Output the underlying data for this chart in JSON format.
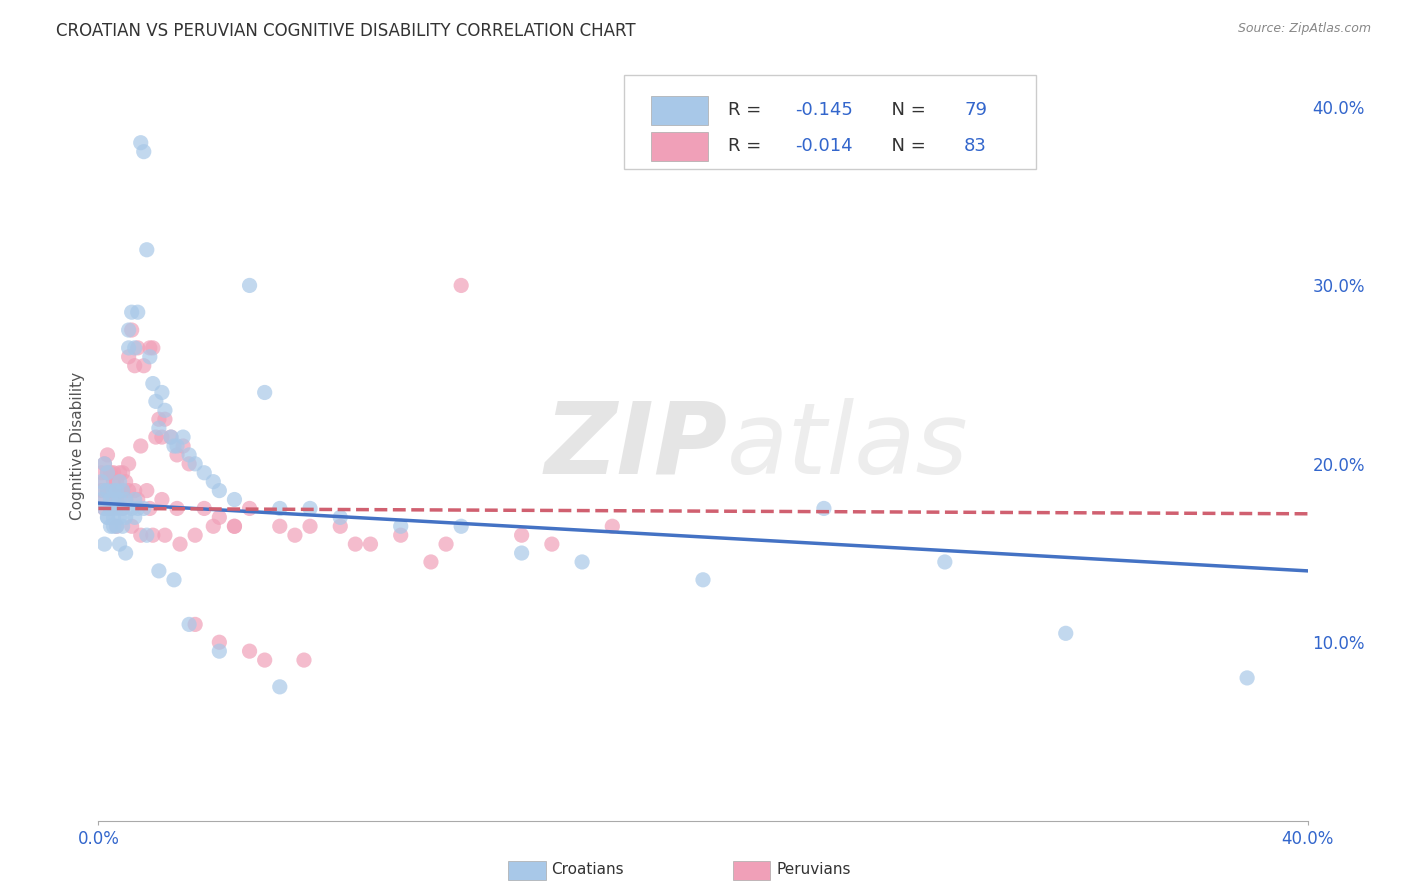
{
  "title": "CROATIAN VS PERUVIAN COGNITIVE DISABILITY CORRELATION CHART",
  "source": "Source: ZipAtlas.com",
  "ylabel": "Cognitive Disability",
  "watermark": "ZIPatlas",
  "croatian_color": "#a8c8e8",
  "peruvian_color": "#f0a0b8",
  "croatian_line_color": "#4472c4",
  "peruvian_line_color": "#d06070",
  "legend_color": "#3366cc",
  "croatian_R": -0.145,
  "croatian_N": 79,
  "peruvian_R": -0.014,
  "peruvian_N": 83,
  "xlim": [
    0.0,
    0.4
  ],
  "ylim": [
    0.0,
    0.42
  ],
  "yticks": [
    0.1,
    0.2,
    0.3,
    0.4
  ],
  "background_color": "#ffffff",
  "grid_color": "#dddddd",
  "croatian_x": [
    0.001,
    0.001,
    0.002,
    0.002,
    0.002,
    0.003,
    0.003,
    0.003,
    0.004,
    0.004,
    0.004,
    0.005,
    0.005,
    0.005,
    0.006,
    0.006,
    0.006,
    0.007,
    0.007,
    0.007,
    0.008,
    0.008,
    0.008,
    0.009,
    0.009,
    0.01,
    0.01,
    0.011,
    0.011,
    0.012,
    0.012,
    0.013,
    0.013,
    0.014,
    0.015,
    0.015,
    0.016,
    0.017,
    0.018,
    0.019,
    0.02,
    0.021,
    0.022,
    0.024,
    0.025,
    0.026,
    0.028,
    0.03,
    0.032,
    0.035,
    0.038,
    0.04,
    0.045,
    0.05,
    0.055,
    0.06,
    0.07,
    0.08,
    0.1,
    0.12,
    0.14,
    0.16,
    0.2,
    0.24,
    0.28,
    0.32,
    0.38,
    0.002,
    0.003,
    0.005,
    0.007,
    0.009,
    0.012,
    0.016,
    0.02,
    0.025,
    0.03,
    0.04,
    0.06
  ],
  "croatian_y": [
    0.19,
    0.18,
    0.2,
    0.185,
    0.175,
    0.195,
    0.185,
    0.17,
    0.18,
    0.175,
    0.165,
    0.185,
    0.18,
    0.17,
    0.185,
    0.175,
    0.165,
    0.19,
    0.18,
    0.17,
    0.185,
    0.175,
    0.165,
    0.18,
    0.17,
    0.275,
    0.265,
    0.285,
    0.175,
    0.265,
    0.18,
    0.285,
    0.175,
    0.38,
    0.375,
    0.175,
    0.32,
    0.26,
    0.245,
    0.235,
    0.22,
    0.24,
    0.23,
    0.215,
    0.21,
    0.21,
    0.215,
    0.205,
    0.2,
    0.195,
    0.19,
    0.185,
    0.18,
    0.3,
    0.24,
    0.175,
    0.175,
    0.17,
    0.165,
    0.165,
    0.15,
    0.145,
    0.135,
    0.175,
    0.145,
    0.105,
    0.08,
    0.155,
    0.17,
    0.165,
    0.155,
    0.15,
    0.17,
    0.16,
    0.14,
    0.135,
    0.11,
    0.095,
    0.075
  ],
  "peruvian_x": [
    0.001,
    0.001,
    0.002,
    0.002,
    0.002,
    0.003,
    0.003,
    0.003,
    0.004,
    0.004,
    0.004,
    0.005,
    0.005,
    0.005,
    0.006,
    0.006,
    0.007,
    0.007,
    0.008,
    0.008,
    0.009,
    0.009,
    0.01,
    0.01,
    0.011,
    0.012,
    0.012,
    0.013,
    0.014,
    0.015,
    0.016,
    0.017,
    0.018,
    0.019,
    0.02,
    0.021,
    0.022,
    0.024,
    0.026,
    0.028,
    0.03,
    0.035,
    0.04,
    0.045,
    0.05,
    0.06,
    0.07,
    0.08,
    0.1,
    0.12,
    0.14,
    0.17,
    0.002,
    0.004,
    0.006,
    0.008,
    0.011,
    0.014,
    0.018,
    0.022,
    0.027,
    0.032,
    0.038,
    0.045,
    0.055,
    0.068,
    0.09,
    0.115,
    0.15,
    0.003,
    0.005,
    0.007,
    0.01,
    0.013,
    0.017,
    0.021,
    0.026,
    0.032,
    0.04,
    0.05,
    0.065,
    0.085,
    0.11
  ],
  "peruvian_y": [
    0.195,
    0.185,
    0.2,
    0.19,
    0.18,
    0.205,
    0.195,
    0.185,
    0.195,
    0.185,
    0.175,
    0.195,
    0.185,
    0.175,
    0.19,
    0.18,
    0.195,
    0.185,
    0.195,
    0.185,
    0.19,
    0.18,
    0.26,
    0.2,
    0.275,
    0.255,
    0.185,
    0.265,
    0.21,
    0.255,
    0.185,
    0.265,
    0.265,
    0.215,
    0.225,
    0.215,
    0.225,
    0.215,
    0.205,
    0.21,
    0.2,
    0.175,
    0.17,
    0.165,
    0.175,
    0.165,
    0.165,
    0.165,
    0.16,
    0.3,
    0.16,
    0.165,
    0.175,
    0.175,
    0.165,
    0.175,
    0.165,
    0.16,
    0.16,
    0.16,
    0.155,
    0.16,
    0.165,
    0.165,
    0.09,
    0.09,
    0.155,
    0.155,
    0.155,
    0.185,
    0.19,
    0.185,
    0.185,
    0.18,
    0.175,
    0.18,
    0.175,
    0.11,
    0.1,
    0.095,
    0.16,
    0.155,
    0.145
  ]
}
